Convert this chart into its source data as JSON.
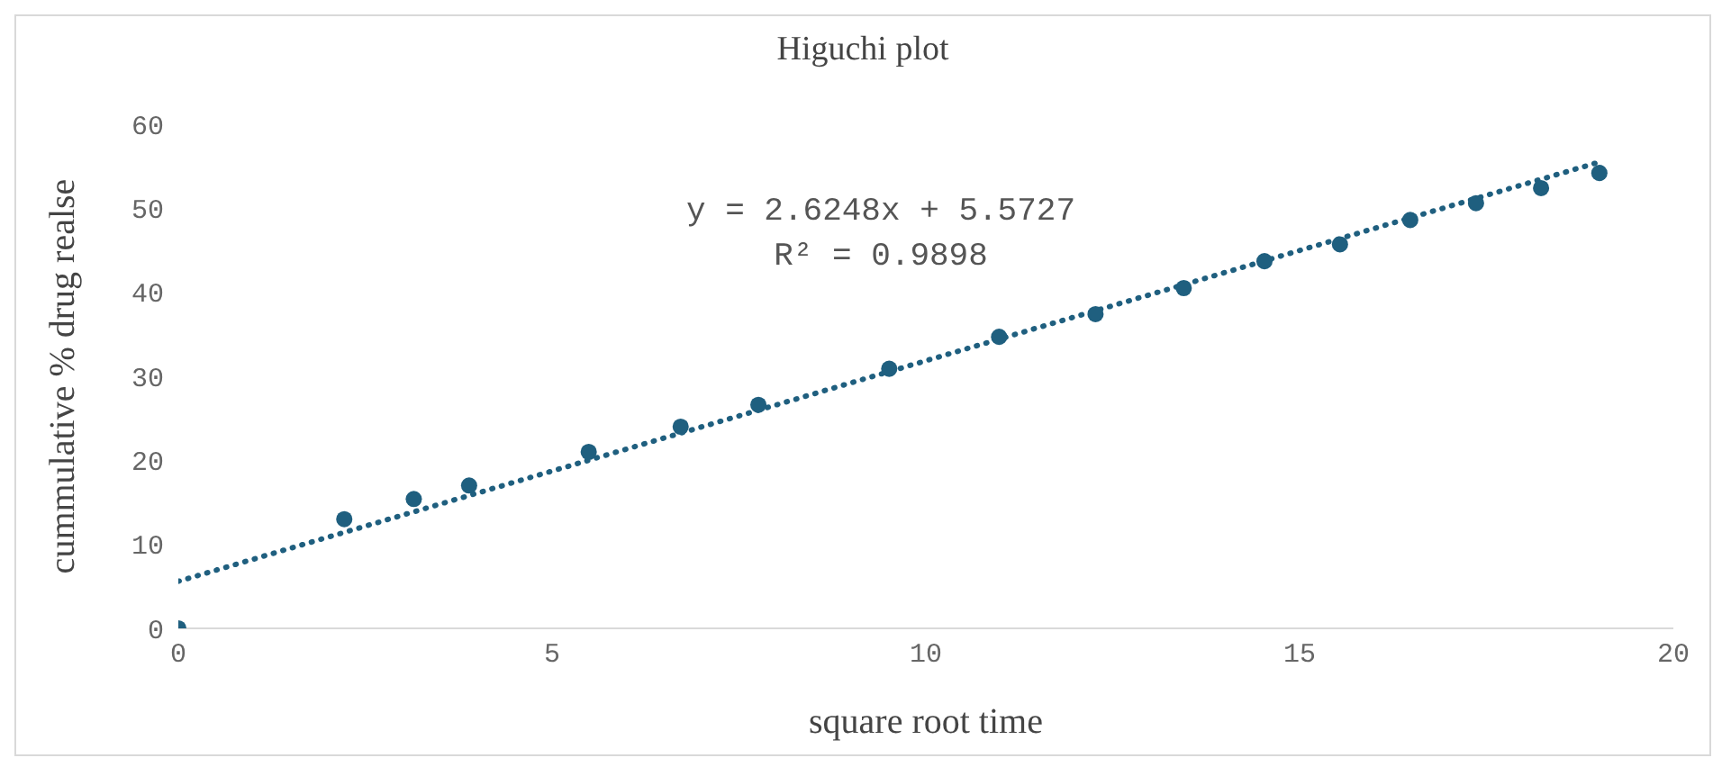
{
  "chart_data": {
    "type": "scatter",
    "title": "Higuchi plot",
    "xlabel": "square root time",
    "ylabel": "cummulative  % drug realse",
    "xlim": [
      0,
      20
    ],
    "xticks": [
      0,
      5,
      10,
      15,
      20
    ],
    "ylim": [
      0,
      60
    ],
    "yticks": [
      0,
      10,
      20,
      30,
      40,
      50,
      60
    ],
    "marker": "circle",
    "annotations": [
      "y = 2.6248x + 5.5727",
      "R² = 0.9898"
    ],
    "series": [
      {
        "type": "scatter",
        "color": "#1f5f7f",
        "x": [
          0,
          2.22,
          3.15,
          3.89,
          5.49,
          6.72,
          7.76,
          9.51,
          10.98,
          12.27,
          13.45,
          14.53,
          15.54,
          16.48,
          17.36,
          18.23,
          19.01
        ],
        "values": [
          0,
          13.0,
          15.4,
          17.0,
          21.0,
          24.0,
          26.6,
          30.9,
          34.7,
          37.4,
          40.5,
          43.7,
          45.7,
          48.6,
          50.6,
          52.4,
          54.2
        ]
      },
      {
        "type": "line",
        "color": "#1f5f7f",
        "line_style": "dotted",
        "marker": "none",
        "x": [
          0,
          19.01
        ],
        "values": [
          5.6,
          55.5
        ]
      }
    ]
  }
}
